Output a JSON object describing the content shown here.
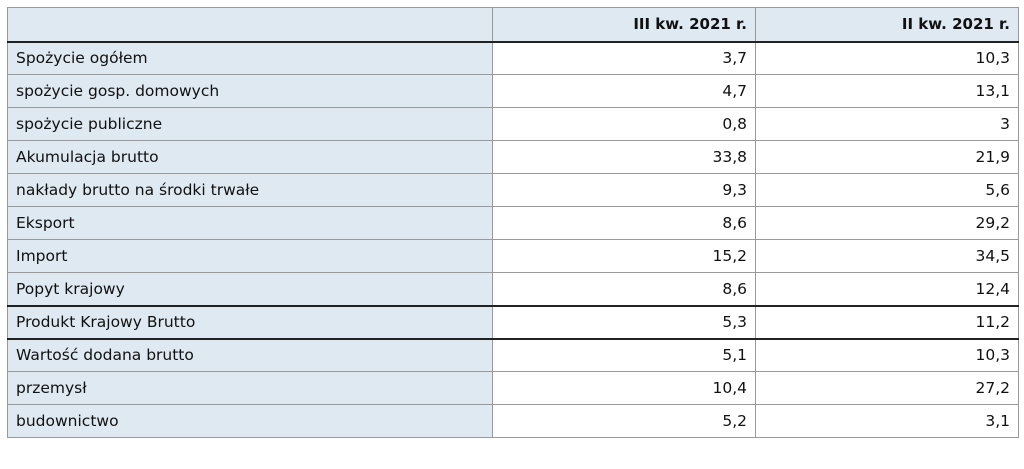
{
  "table": {
    "headers": [
      "",
      "III kw. 2021 r.",
      "II kw. 2021 r."
    ],
    "rows": [
      {
        "label": "Spożycie ogółem",
        "q3": "3,7",
        "q2": "10,3",
        "thick_top": false
      },
      {
        "label": "spożycie gosp. domowych",
        "q3": "4,7",
        "q2": "13,1",
        "thick_top": false
      },
      {
        "label": "spożycie publiczne",
        "q3": "0,8",
        "q2": "3",
        "thick_top": false
      },
      {
        "label": "Akumulacja brutto",
        "q3": "33,8",
        "q2": "21,9",
        "thick_top": false
      },
      {
        "label": "nakłady brutto na środki trwałe",
        "q3": "9,3",
        "q2": "5,6",
        "thick_top": false
      },
      {
        "label": "Eksport",
        "q3": "8,6",
        "q2": "29,2",
        "thick_top": false
      },
      {
        "label": "Import",
        "q3": "15,2",
        "q2": "34,5",
        "thick_top": false
      },
      {
        "label": "Popyt krajowy",
        "q3": "8,6",
        "q2": "12,4",
        "thick_top": false
      },
      {
        "label": "Produkt Krajowy Brutto",
        "q3": "5,3",
        "q2": "11,2",
        "thick_top": true
      },
      {
        "label": "Wartość dodana brutto",
        "q3": "5,1",
        "q2": "10,3",
        "thick_top": true
      },
      {
        "label": "przemysł",
        "q3": "10,4",
        "q2": "27,2",
        "thick_top": false
      },
      {
        "label": "budownictwo",
        "q3": "5,2",
        "q2": "3,1",
        "thick_top": false
      }
    ]
  },
  "colors": {
    "label_background": "#dfe9f2",
    "value_background": "#ffffff",
    "border": "#9a9a9a",
    "separator": "#222222"
  }
}
